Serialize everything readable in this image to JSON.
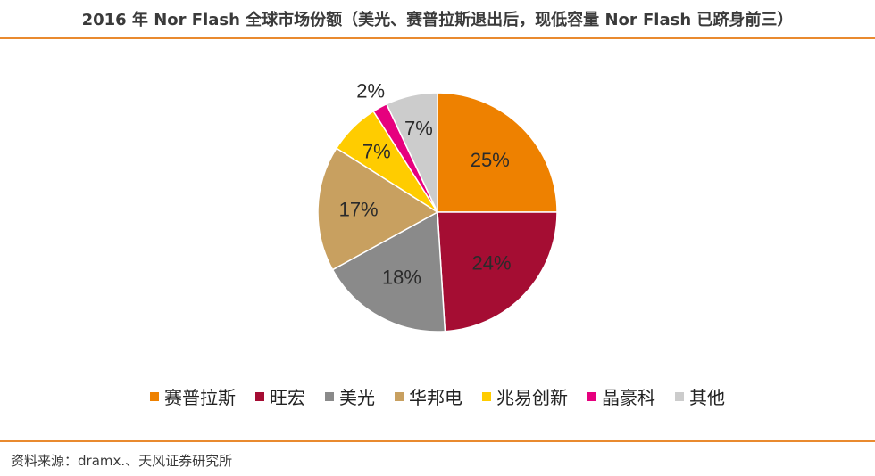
{
  "title": "2016 年 Nor Flash 全球市场份额（美光、赛普拉斯退出后，现低容量 Nor Flash 已跻身前三）",
  "source": "资料来源：dramx.、天风证券研究所",
  "colors": {
    "accent_rule": "#e98a2f"
  },
  "chart_data": {
    "type": "pie",
    "categories": [
      "赛普拉斯",
      "旺宏",
      "美光",
      "华邦电",
      "兆易创新",
      "晶豪科",
      "其他"
    ],
    "values": [
      25,
      24,
      18,
      17,
      7,
      2,
      7
    ],
    "labels": [
      "25%",
      "24%",
      "18%",
      "17%",
      "7%",
      "2%",
      "7%"
    ],
    "colors": [
      "#ee8100",
      "#a50d33",
      "#8a8a8a",
      "#c8a060",
      "#ffcc00",
      "#e6007e",
      "#cccccc"
    ],
    "legend_position": "bottom",
    "start_angle": "12 o'clock",
    "direction": "clockwise"
  }
}
